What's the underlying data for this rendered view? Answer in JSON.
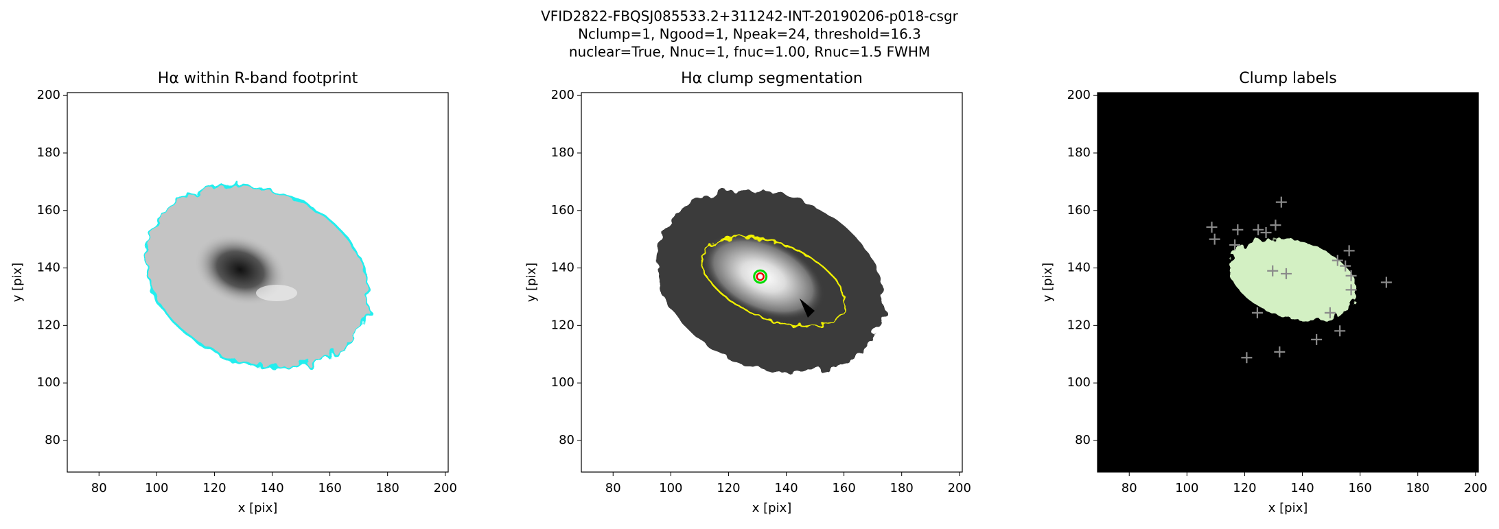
{
  "suptitle": [
    "VFID2822-FBQSJ085533.2+311242-INT-20190206-p018-csgr",
    "Nclump=1, Ngood=1, Npeak=24, threshold=16.3",
    "nuclear=True, Nnuc=1, fnuc=1.00, Rnuc=1.5 FWHM"
  ],
  "chart_data": [
    {
      "type": "image",
      "title": "Hα within R-band footprint",
      "xlabel": "x [pix]",
      "ylabel": "y [pix]",
      "xlim": [
        69,
        201
      ],
      "ylim": [
        69,
        201
      ],
      "xticks": [
        80,
        100,
        120,
        140,
        160,
        180,
        200
      ],
      "yticks": [
        80,
        100,
        120,
        140,
        160,
        180,
        200
      ]
    },
    {
      "type": "image",
      "title": "Hα clump segmentation",
      "xlabel": "x [pix]",
      "ylabel": "y [pix]",
      "xlim": [
        69,
        201
      ],
      "ylim": [
        69,
        201
      ],
      "xticks": [
        80,
        100,
        120,
        140,
        160,
        180,
        200
      ],
      "yticks": [
        80,
        100,
        120,
        140,
        160,
        180,
        200
      ],
      "points": {
        "x": [
          131
        ],
        "y": [
          137
        ],
        "color": "#00dd00",
        "marker": "circle"
      }
    },
    {
      "type": "image",
      "title": "Clump labels",
      "xlabel": "x [pix]",
      "ylabel": "y [pix]",
      "xlim": [
        69,
        201
      ],
      "ylim": [
        69,
        201
      ],
      "xticks": [
        80,
        100,
        120,
        140,
        160,
        180,
        200
      ],
      "yticks": [
        80,
        100,
        120,
        140,
        160,
        180,
        200
      ],
      "points": {
        "x": [
          108.6,
          109.6,
          117.6,
          116.6,
          124.7,
          127.4,
          130.7,
          132.7,
          129.7,
          134.4,
          152.2,
          154.9,
          156.2,
          156.9,
          156.9,
          169.1,
          149.6,
          124.4,
          144.9,
          153.0,
          120.7,
          132.1
        ],
        "y": [
          154.2,
          150.0,
          153.3,
          148.0,
          153.3,
          152.3,
          154.9,
          162.9,
          139.0,
          138.0,
          142.6,
          140.7,
          146.0,
          137.3,
          132.4,
          135.0,
          124.4,
          124.4,
          115.1,
          118.1,
          108.8,
          110.8
        ],
        "color": "#8a8a8a",
        "marker": "plus"
      }
    }
  ]
}
